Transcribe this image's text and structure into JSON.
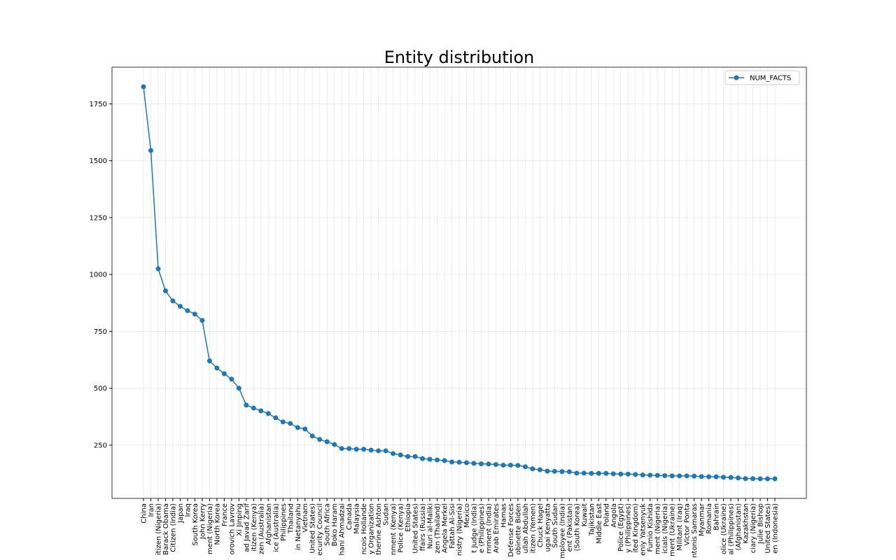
{
  "chart_data": {
    "type": "line",
    "title": "Entity distribution",
    "categories": [
      "China",
      "Iran",
      "itizen (Nigeria)",
      "Barack Obama",
      "Citizen (India)",
      "Japan",
      "Iraq",
      "South Korea",
      "John Kerry",
      "ment (Nigeria)",
      "North Korea",
      "France",
      "orovich Lavrov",
      "Xi Jinping",
      "ad Javad Zarif",
      "itizen (Kenya)",
      "zen (Australia)",
      "Afghanistan",
      "ice (Australia)",
      "Philippines",
      "Thailand",
      "in Netanyahu",
      "Vietnam",
      "United States)",
      "ecurity Council",
      "South Africa",
      "Boko Haram",
      "hani Ahmadzai",
      "Canada",
      "Malaysia",
      "ncois Hollande",
      "y Organization",
      "therine Ashton",
      "Sudan",
      "nment (Kenya)",
      "Police (Kenya)",
      "Ethiopia",
      "United States)",
      "ffairs (Russia)",
      "Nuri al-Maliki",
      "zen (Thailand)",
      "Angela Merkel",
      "Fattah Al-Sisi",
      "nistry (Nigeria)",
      "Mexico",
      "t Judge (India)",
      "e (Philippines)",
      "rnment (India)",
      "Arab Emirates",
      "Hamas",
      "Defense Forces",
      "obinette Biden",
      "ullah Abdullah",
      "itizen (Yemen)",
      "Chuck Hagel",
      "ugai Kenyatta",
      "South Sudan",
      "mployee (India)",
      "ent (Pakistan)",
      "(South Korea)",
      "Kuwait",
      "Tajikistan",
      "Middle East",
      "Poland",
      "Angola",
      "Police (Egypt)",
      "y (Philippines)",
      "ited Kingdom)",
      "eniy Yatsenyuk",
      "Fumio Kishida",
      "ment (Nigeria)",
      "icials (Nigeria)",
      "ment (Ukraine)",
      "Militant (Iraq)",
      "Victor Ponta",
      "ntonis Samaras",
      "Myanmar",
      "Romania",
      "Bahrain",
      "olice (Ukraine)",
      "al (Philippines)",
      "(Afghanistan)",
      "Kazakhstan",
      "ciary (Nigeria)",
      "Julie Bishop",
      "United States)",
      "en (Indonesia)"
    ],
    "series": [
      {
        "name": "NUM_FACTS",
        "color": "#1f77b4",
        "values": [
          1825,
          1545,
          1025,
          928,
          884,
          860,
          841,
          826,
          798,
          620,
          589,
          564,
          540,
          500,
          426,
          413,
          401,
          389,
          370,
          352,
          345,
          327,
          321,
          290,
          275,
          265,
          253,
          235,
          235,
          232,
          232,
          228,
          225,
          225,
          213,
          207,
          200,
          200,
          191,
          188,
          185,
          182,
          176,
          175,
          173,
          170,
          168,
          167,
          165,
          162,
          162,
          161,
          155,
          146,
          142,
          136,
          135,
          134,
          133,
          127,
          127,
          126,
          126,
          126,
          124,
          123,
          123,
          121,
          119,
          118,
          117,
          116,
          115,
          115,
          115,
          114,
          112,
          111,
          111,
          109,
          108,
          106,
          103,
          103,
          102,
          102,
          102
        ]
      }
    ],
    "ylim": [
      16,
      1911
    ],
    "yticks": [
      250,
      500,
      750,
      1000,
      1250,
      1500,
      1750
    ],
    "grid": true,
    "legend": "upper right"
  }
}
